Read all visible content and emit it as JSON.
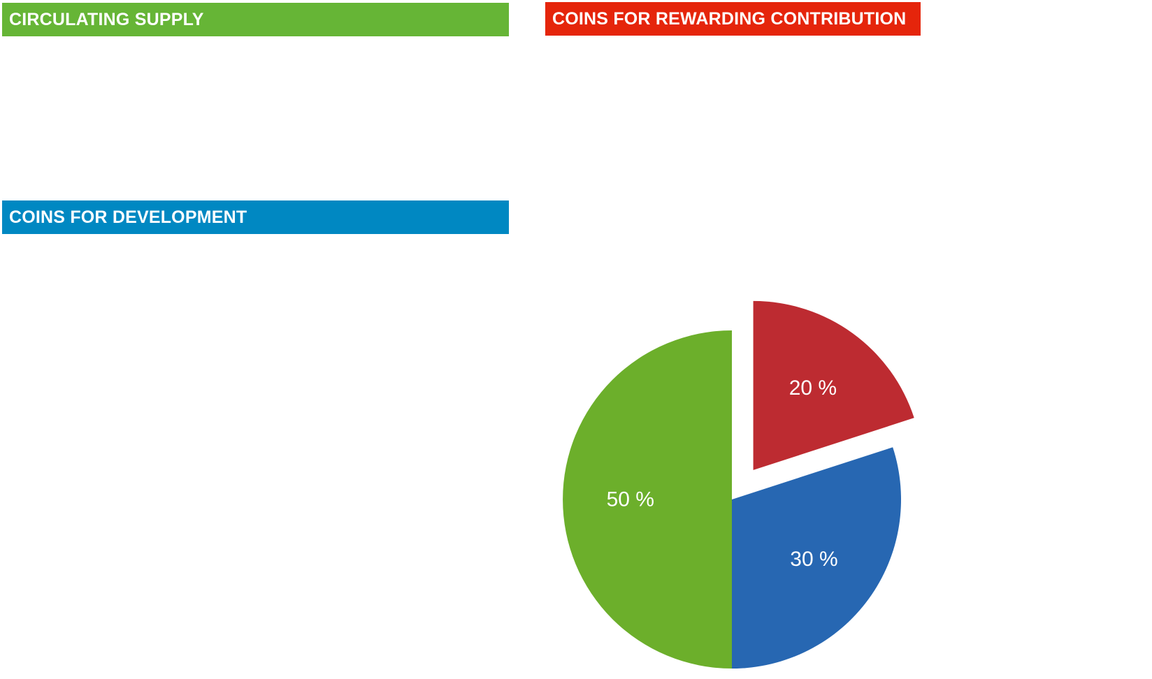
{
  "legend": {
    "circulating": {
      "label": "CIRCULATING SUPPLY",
      "color": "#66b536"
    },
    "development": {
      "label": "COINS FOR DEVELOPMENT",
      "color": "#0088c2"
    },
    "rewarding": {
      "label": "COINS FOR REWARDING CONTRIBUTION",
      "color": "#e5250b"
    }
  },
  "chart_data": {
    "type": "pie",
    "title": "",
    "legend_placement": "top",
    "slices": [
      {
        "key": "rewarding",
        "value": 20,
        "label": "20 %",
        "color": "#bd2b31",
        "exploded": true
      },
      {
        "key": "development",
        "value": 30,
        "label": "30 %",
        "color": "#2767b2",
        "exploded": false
      },
      {
        "key": "circulating",
        "value": 50,
        "label": "50 %",
        "color": "#6caf2b",
        "exploded": false
      }
    ]
  }
}
